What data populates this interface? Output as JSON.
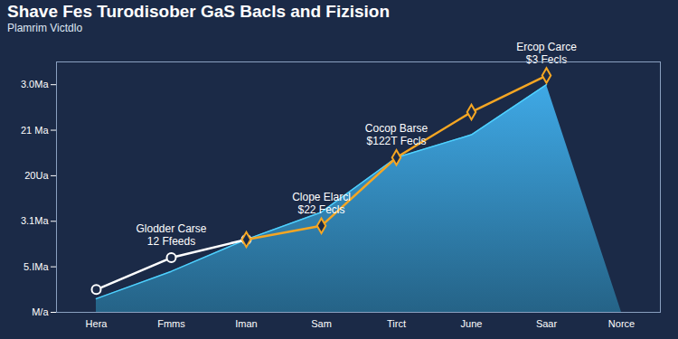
{
  "chart_data": {
    "type": "line",
    "title": "Shave Fes Turodisober GaS Bacls and Fizision",
    "subtitle": "Plamrim Victdlo",
    "categories": [
      "Hera",
      "Fmms",
      "Iman",
      "Sam",
      "Tirct",
      "June",
      "Saar",
      "Norce"
    ],
    "series": [
      {
        "type": "area",
        "color": "#3fa9e6",
        "values": [
          0.3,
          0.9,
          1.6,
          2.2,
          3.4,
          3.9,
          5.0,
          null
        ]
      },
      {
        "type": "line",
        "color": "#ffffff",
        "marker": "circle",
        "values": [
          0.5,
          1.2,
          1.6,
          null,
          null,
          null,
          null,
          null
        ]
      },
      {
        "type": "line",
        "color": "#f5a623",
        "marker": "diamond",
        "values": [
          null,
          null,
          1.6,
          1.9,
          3.4,
          4.4,
          5.2,
          null
        ]
      }
    ],
    "annotations": [
      {
        "x": "Fmms",
        "y": 1.2,
        "text": "Glodder Carse\n12 Ffeeds"
      },
      {
        "x": "Sam",
        "y": 1.9,
        "text": "Clope Elarcl\n$22 Fecls"
      },
      {
        "x": "Tirct",
        "y": 3.4,
        "text": "Cocop Barse\n$122T Fecls"
      },
      {
        "x": "Saar",
        "y": 5.2,
        "text": "Ercop Carce\n$3 Fecls"
      }
    ],
    "ylim": [
      0,
      5.5
    ],
    "yticks": [
      {
        "value": 0,
        "label": "M/a"
      },
      {
        "value": 1,
        "label": "5.IMa"
      },
      {
        "value": 2,
        "label": "3.1Ma"
      },
      {
        "value": 3,
        "label": "20Ua"
      },
      {
        "value": 4,
        "label": "21 Ma"
      },
      {
        "value": 5,
        "label": "3.0Ma"
      }
    ],
    "grid": false
  }
}
